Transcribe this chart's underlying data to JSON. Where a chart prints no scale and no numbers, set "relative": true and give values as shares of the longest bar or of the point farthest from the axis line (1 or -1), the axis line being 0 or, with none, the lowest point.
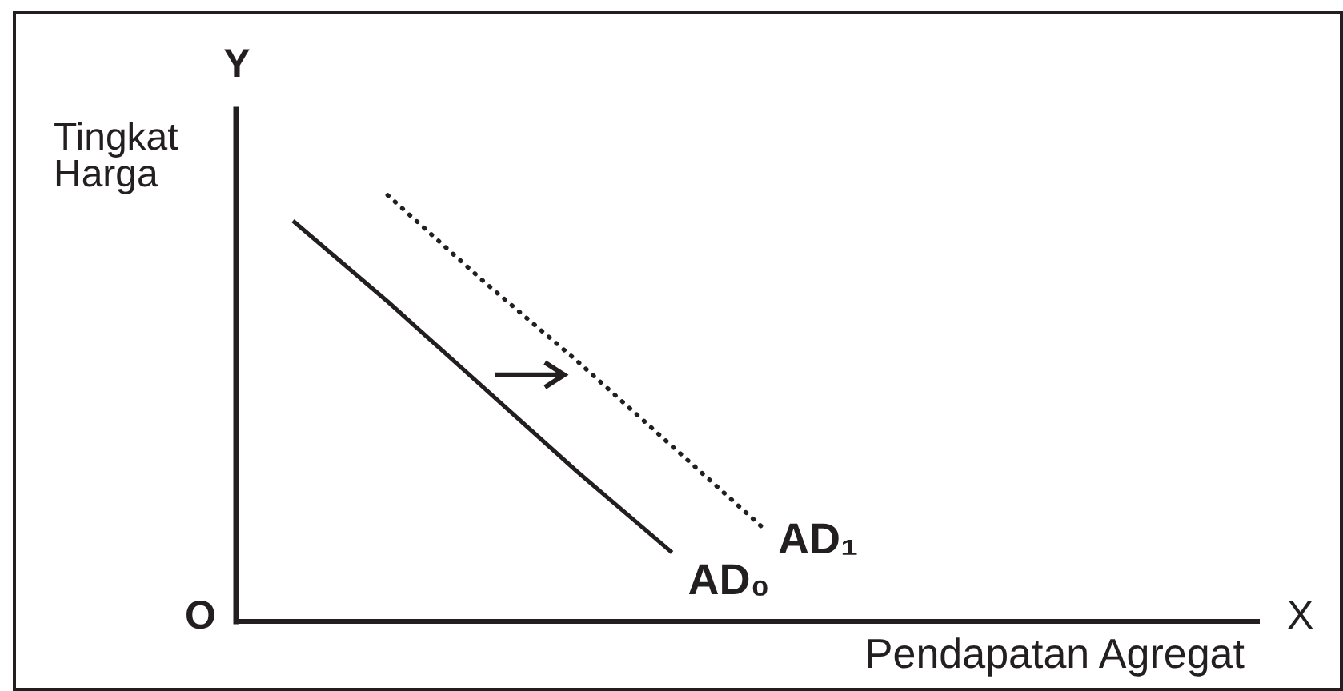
{
  "chart_data": {
    "type": "line",
    "relative": true,
    "xlabel": "Pendapatan Agregat",
    "ylabel": "Tingkat Harga",
    "annotations": [
      "Y",
      "X",
      "O"
    ],
    "legend": false,
    "grid": false,
    "categories": [
      null,
      null,
      null,
      null,
      null,
      null
    ],
    "series": [
      {
        "name": "AD₀",
        "color": "#231f20",
        "line_style": "solid",
        "values": [
          0.94,
          0.75,
          0.55,
          0.35,
          0.16,
          null
        ]
      },
      {
        "name": "AD₁",
        "color": "#231f20",
        "line_style": "dotted",
        "values": [
          null,
          1,
          0.8,
          0.61,
          0.41,
          0.21
        ]
      }
    ]
  }
}
